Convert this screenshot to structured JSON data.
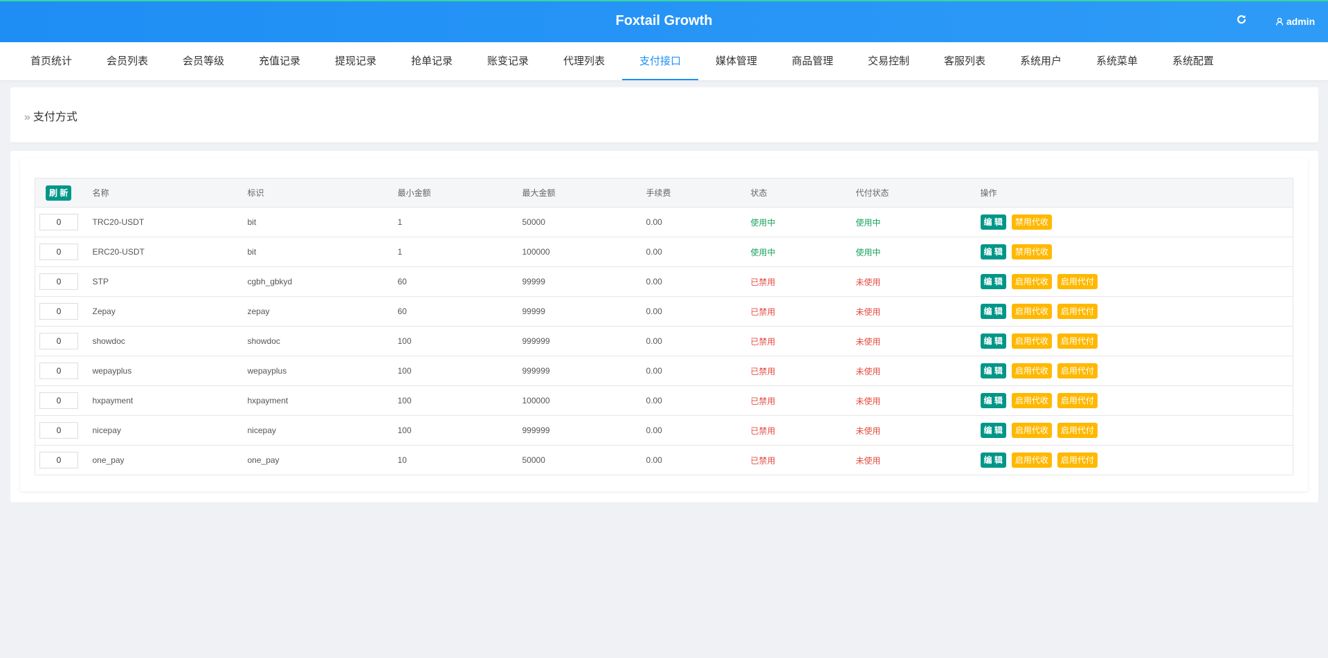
{
  "header": {
    "title": "Foxtail Growth",
    "user": "admin"
  },
  "nav": {
    "items": [
      "首页统计",
      "会员列表",
      "会员等级",
      "充值记录",
      "提现记录",
      "抢单记录",
      "账变记录",
      "代理列表",
      "支付接口",
      "媒体管理",
      "商品管理",
      "交易控制",
      "客服列表",
      "系统用户",
      "系统菜单",
      "系统配置"
    ],
    "active": 8
  },
  "breadcrumb": "支付方式",
  "table": {
    "refresh": "刷 新",
    "headers": [
      "名称",
      "标识",
      "最小金额",
      "最大金额",
      "手续费",
      "状态",
      "代付状态",
      "操作"
    ],
    "rows": [
      {
        "sort": "0",
        "name": "TRC20-USDT",
        "code": "bit",
        "min": "1",
        "max": "50000",
        "fee": "0.00",
        "status": {
          "text": "使用中",
          "color": "#1aa15f"
        },
        "payout": {
          "text": "使用中",
          "color": "#1aa15f"
        },
        "actions": [
          "编 辑",
          "禁用代收"
        ]
      },
      {
        "sort": "0",
        "name": "ERC20-USDT",
        "code": "bit",
        "min": "1",
        "max": "100000",
        "fee": "0.00",
        "status": {
          "text": "使用中",
          "color": "#1aa15f"
        },
        "payout": {
          "text": "使用中",
          "color": "#1aa15f"
        },
        "actions": [
          "编 辑",
          "禁用代收"
        ]
      },
      {
        "sort": "0",
        "name": "STP",
        "code": "cgbh_gbkyd",
        "min": "60",
        "max": "99999",
        "fee": "0.00",
        "status": {
          "text": "已禁用",
          "color": "#e54d42"
        },
        "payout": {
          "text": "未使用",
          "color": "#e54d42"
        },
        "actions": [
          "编 辑",
          "启用代收",
          "启用代付"
        ]
      },
      {
        "sort": "0",
        "name": "Zepay",
        "code": "zepay",
        "min": "60",
        "max": "99999",
        "fee": "0.00",
        "status": {
          "text": "已禁用",
          "color": "#e54d42"
        },
        "payout": {
          "text": "未使用",
          "color": "#e54d42"
        },
        "actions": [
          "编 辑",
          "启用代收",
          "启用代付"
        ]
      },
      {
        "sort": "0",
        "name": "showdoc",
        "code": "showdoc",
        "min": "100",
        "max": "999999",
        "fee": "0.00",
        "status": {
          "text": "已禁用",
          "color": "#e54d42"
        },
        "payout": {
          "text": "未使用",
          "color": "#e54d42"
        },
        "actions": [
          "编 辑",
          "启用代收",
          "启用代付"
        ]
      },
      {
        "sort": "0",
        "name": "wepayplus",
        "code": "wepayplus",
        "min": "100",
        "max": "999999",
        "fee": "0.00",
        "status": {
          "text": "已禁用",
          "color": "#e54d42"
        },
        "payout": {
          "text": "未使用",
          "color": "#e54d42"
        },
        "actions": [
          "编 辑",
          "启用代收",
          "启用代付"
        ]
      },
      {
        "sort": "0",
        "name": "hxpayment",
        "code": "hxpayment",
        "min": "100",
        "max": "100000",
        "fee": "0.00",
        "status": {
          "text": "已禁用",
          "color": "#e54d42"
        },
        "payout": {
          "text": "未使用",
          "color": "#e54d42"
        },
        "actions": [
          "编 辑",
          "启用代收",
          "启用代付"
        ]
      },
      {
        "sort": "0",
        "name": "nicepay",
        "code": "nicepay",
        "min": "100",
        "max": "999999",
        "fee": "0.00",
        "status": {
          "text": "已禁用",
          "color": "#e54d42"
        },
        "payout": {
          "text": "未使用",
          "color": "#e54d42"
        },
        "actions": [
          "编 辑",
          "启用代收",
          "启用代付"
        ]
      },
      {
        "sort": "0",
        "name": "one_pay",
        "code": "one_pay",
        "min": "10",
        "max": "50000",
        "fee": "0.00",
        "status": {
          "text": "已禁用",
          "color": "#e54d42"
        },
        "payout": {
          "text": "未使用",
          "color": "#e54d42"
        },
        "actions": [
          "编 辑",
          "启用代收",
          "启用代付"
        ]
      }
    ]
  }
}
